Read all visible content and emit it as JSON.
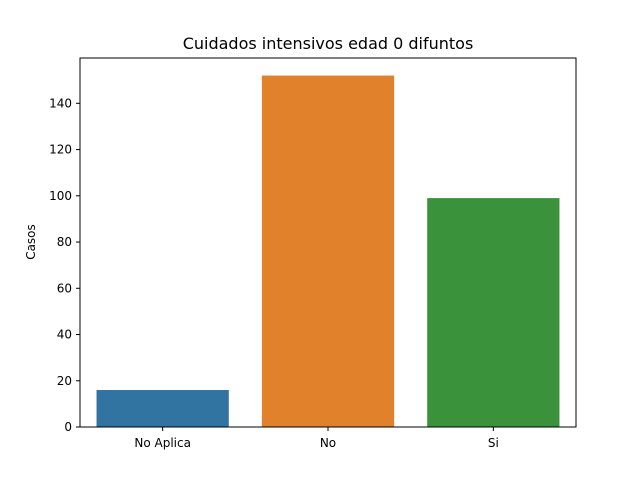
{
  "chart_data": {
    "type": "bar",
    "title": "Cuidados intensivos edad 0 difuntos",
    "xlabel": "",
    "ylabel": "Casos",
    "categories": [
      "No Aplica",
      "No",
      "Si"
    ],
    "values": [
      16,
      152,
      99
    ],
    "colors": [
      "#3274a1",
      "#e1812c",
      "#3a923a"
    ],
    "ylim": [
      0,
      159.6
    ],
    "yticks": [
      0,
      20,
      40,
      60,
      80,
      100,
      120,
      140
    ],
    "grid": false
  }
}
